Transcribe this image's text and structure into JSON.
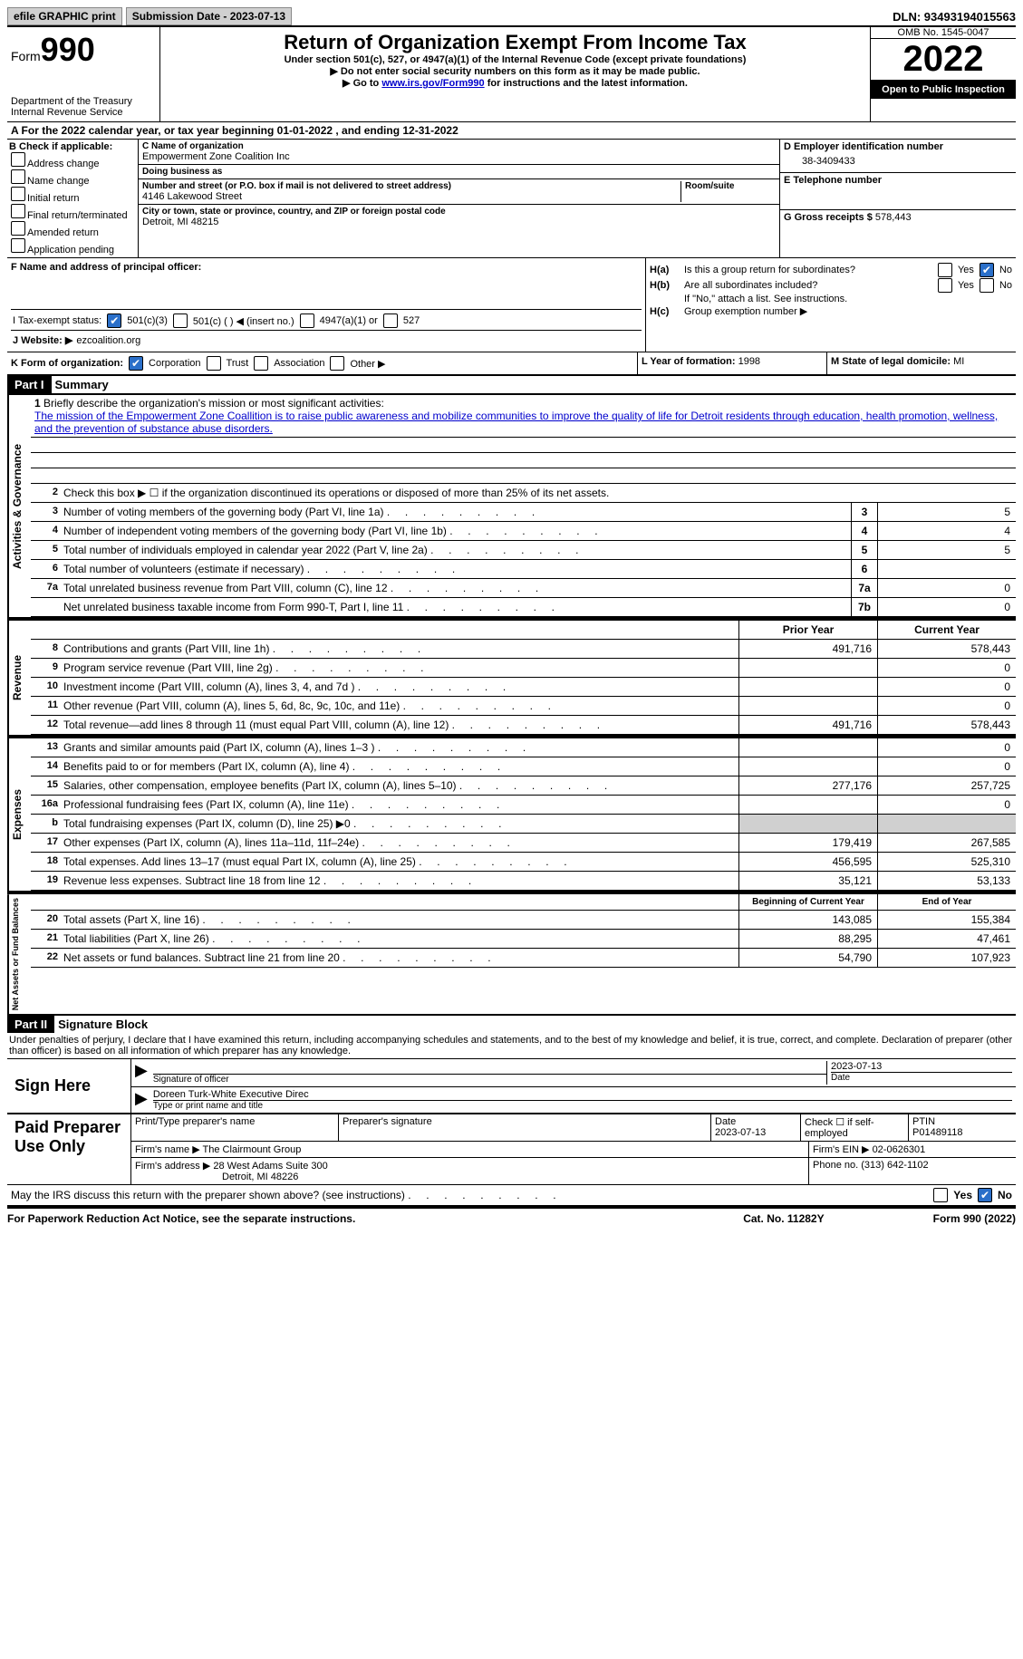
{
  "topbar": {
    "efile": "efile GRAPHIC print",
    "sub_date_label": "Submission Date - 2023-07-13",
    "dln": "DLN: 93493194015563"
  },
  "header": {
    "form_prefix": "Form",
    "form_number": "990",
    "dept": "Department of the Treasury",
    "irs": "Internal Revenue Service",
    "title": "Return of Organization Exempt From Income Tax",
    "subtitle1": "Under section 501(c), 527, or 4947(a)(1) of the Internal Revenue Code (except private foundations)",
    "subtitle2": "▶ Do not enter social security numbers on this form as it may be made public.",
    "subtitle3_pre": "▶ Go to ",
    "subtitle3_link": "www.irs.gov/Form990",
    "subtitle3_post": " for instructions and the latest information.",
    "omb": "OMB No. 1545-0047",
    "year": "2022",
    "inspect": "Open to Public Inspection"
  },
  "row_a": "A For the 2022 calendar year, or tax year beginning 01-01-2022    , and ending 12-31-2022",
  "box_b": {
    "label": "B Check if applicable:",
    "opts": [
      "Address change",
      "Name change",
      "Initial return",
      "Final return/terminated",
      "Amended return",
      "Application pending"
    ]
  },
  "box_c": {
    "name_label": "C Name of organization",
    "name": "Empowerment Zone Coalition Inc",
    "dba_label": "Doing business as",
    "dba": "",
    "addr_label": "Number and street (or P.O. box if mail is not delivered to street address)",
    "room_label": "Room/suite",
    "addr": "4146 Lakewood Street",
    "city_label": "City or town, state or province, country, and ZIP or foreign postal code",
    "city": "Detroit, MI  48215"
  },
  "box_d": {
    "label": "D Employer identification number",
    "value": "38-3409433"
  },
  "box_e": {
    "label": "E Telephone number",
    "value": ""
  },
  "box_g": {
    "label": "G Gross receipts $",
    "value": "578,443"
  },
  "box_f": {
    "label": "F Name and address of principal officer:"
  },
  "box_h": {
    "ha": "Is this a group return for subordinates?",
    "hb": "Are all subordinates included?",
    "hb_note": "If \"No,\" attach a list. See instructions.",
    "hc": "Group exemption number ▶"
  },
  "box_i": {
    "label": "I   Tax-exempt status:",
    "opts": [
      "501(c)(3)",
      "501(c) (  ) ◀ (insert no.)",
      "4947(a)(1) or",
      "527"
    ]
  },
  "box_j": {
    "label": "J   Website: ▶",
    "value": "ezcoalition.org"
  },
  "box_k": {
    "label": "K Form of organization:",
    "opts": [
      "Corporation",
      "Trust",
      "Association",
      "Other ▶"
    ]
  },
  "box_l": {
    "label": "L Year of formation:",
    "value": "1998"
  },
  "box_m": {
    "label": "M State of legal domicile:",
    "value": "MI"
  },
  "part1": {
    "header": "Part I",
    "title": "Summary",
    "line1_label": "Briefly describe the organization's mission or most significant activities:",
    "line1_text": "The mission of the Empowerment Zone Coallition is to raise public awareness and mobilize communities to improve the quality of life for Detroit residents through education, health promotion, wellness, and the prevention of substance abuse disorders.",
    "line2": "Check this box ▶ ☐  if the organization discontinued its operations or disposed of more than 25% of its net assets.",
    "lines_small": [
      {
        "n": "3",
        "desc": "Number of voting members of the governing body (Part VI, line 1a)",
        "box": "3",
        "val": "5"
      },
      {
        "n": "4",
        "desc": "Number of independent voting members of the governing body (Part VI, line 1b)",
        "box": "4",
        "val": "4"
      },
      {
        "n": "5",
        "desc": "Total number of individuals employed in calendar year 2022 (Part V, line 2a)",
        "box": "5",
        "val": "5"
      },
      {
        "n": "6",
        "desc": "Total number of volunteers (estimate if necessary)",
        "box": "6",
        "val": ""
      },
      {
        "n": "7a",
        "desc": "Total unrelated business revenue from Part VIII, column (C), line 12",
        "box": "7a",
        "val": "0"
      },
      {
        "n": "",
        "desc": "Net unrelated business taxable income from Form 990-T, Part I, line 11",
        "box": "7b",
        "val": "0"
      }
    ],
    "prior_label": "Prior Year",
    "current_label": "Current Year",
    "revenue_lines": [
      {
        "n": "8",
        "desc": "Contributions and grants (Part VIII, line 1h)",
        "prior": "491,716",
        "curr": "578,443"
      },
      {
        "n": "9",
        "desc": "Program service revenue (Part VIII, line 2g)",
        "prior": "",
        "curr": "0"
      },
      {
        "n": "10",
        "desc": "Investment income (Part VIII, column (A), lines 3, 4, and 7d )",
        "prior": "",
        "curr": "0"
      },
      {
        "n": "11",
        "desc": "Other revenue (Part VIII, column (A), lines 5, 6d, 8c, 9c, 10c, and 11e)",
        "prior": "",
        "curr": "0"
      },
      {
        "n": "12",
        "desc": "Total revenue—add lines 8 through 11 (must equal Part VIII, column (A), line 12)",
        "prior": "491,716",
        "curr": "578,443"
      }
    ],
    "expense_lines": [
      {
        "n": "13",
        "desc": "Grants and similar amounts paid (Part IX, column (A), lines 1–3 )",
        "prior": "",
        "curr": "0"
      },
      {
        "n": "14",
        "desc": "Benefits paid to or for members (Part IX, column (A), line 4)",
        "prior": "",
        "curr": "0"
      },
      {
        "n": "15",
        "desc": "Salaries, other compensation, employee benefits (Part IX, column (A), lines 5–10)",
        "prior": "277,176",
        "curr": "257,725"
      },
      {
        "n": "16a",
        "desc": "Professional fundraising fees (Part IX, column (A), line 11e)",
        "prior": "",
        "curr": "0"
      },
      {
        "n": "b",
        "desc": "Total fundraising expenses (Part IX, column (D), line 25) ▶0",
        "prior": "SHADE",
        "curr": "SHADE"
      },
      {
        "n": "17",
        "desc": "Other expenses (Part IX, column (A), lines 11a–11d, 11f–24e)",
        "prior": "179,419",
        "curr": "267,585"
      },
      {
        "n": "18",
        "desc": "Total expenses. Add lines 13–17 (must equal Part IX, column (A), line 25)",
        "prior": "456,595",
        "curr": "525,310"
      },
      {
        "n": "19",
        "desc": "Revenue less expenses. Subtract line 18 from line 12",
        "prior": "35,121",
        "curr": "53,133"
      }
    ],
    "begin_label": "Beginning of Current Year",
    "end_label": "End of Year",
    "net_lines": [
      {
        "n": "20",
        "desc": "Total assets (Part X, line 16)",
        "prior": "143,085",
        "curr": "155,384"
      },
      {
        "n": "21",
        "desc": "Total liabilities (Part X, line 26)",
        "prior": "88,295",
        "curr": "47,461"
      },
      {
        "n": "22",
        "desc": "Net assets or fund balances. Subtract line 21 from line 20",
        "prior": "54,790",
        "curr": "107,923"
      }
    ]
  },
  "part2": {
    "header": "Part II",
    "title": "Signature Block",
    "declaration": "Under penalties of perjury, I declare that I have examined this return, including accompanying schedules and statements, and to the best of my knowledge and belief, it is true, correct, and complete. Declaration of preparer (other than officer) is based on all information of which preparer has any knowledge.",
    "sign_here": "Sign Here",
    "sig_officer": "Signature of officer",
    "sig_date": "2023-07-13",
    "sig_name": "Doreen Turk-White  Executive Direc",
    "sig_name_label": "Type or print name and title",
    "date_label": "Date"
  },
  "preparer": {
    "label": "Paid Preparer Use Only",
    "print_label": "Print/Type preparer's name",
    "sig_label": "Preparer's signature",
    "date_label": "Date",
    "date": "2023-07-13",
    "check_label": "Check ☐ if self-employed",
    "ptin_label": "PTIN",
    "ptin": "P01489118",
    "firm_name_label": "Firm's name    ▶",
    "firm_name": "The Clairmount Group",
    "firm_ein_label": "Firm's EIN ▶",
    "firm_ein": "02-0626301",
    "firm_addr_label": "Firm's address ▶",
    "firm_addr": "28 West Adams Suite 300",
    "firm_city": "Detroit, MI  48226",
    "phone_label": "Phone no.",
    "phone": "(313) 642-1102"
  },
  "discuss": "May the IRS discuss this return with the preparer shown above? (see instructions)",
  "footer": {
    "left": "For Paperwork Reduction Act Notice, see the separate instructions.",
    "mid": "Cat. No. 11282Y",
    "right": "Form 990 (2022)"
  },
  "labels": {
    "yes": "Yes",
    "no": "No",
    "activities": "Activities & Governance",
    "revenue": "Revenue",
    "expenses": "Expenses",
    "netassets": "Net Assets or Fund Balances"
  }
}
